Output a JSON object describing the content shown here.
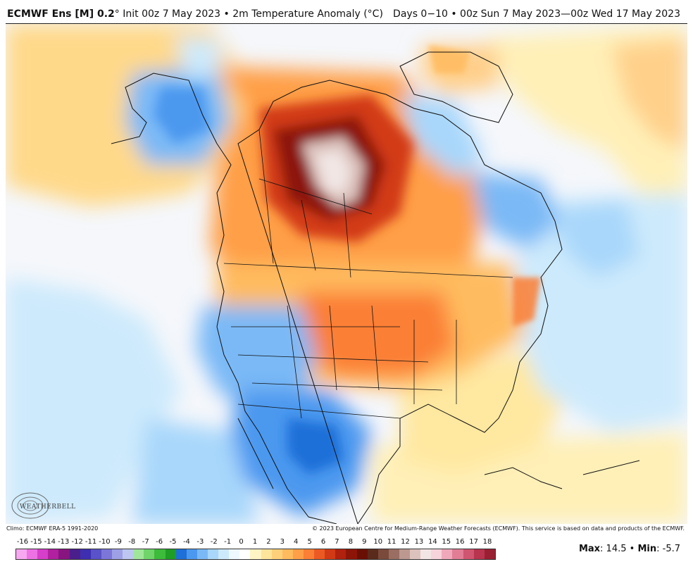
{
  "header": {
    "model": "ECMWF Ens [M] 0.2",
    "model_degree": "°",
    "init": " Init 00z 7 May 2023 • 2m Temperature Anomaly (°C)",
    "valid_range": "Days 0−10 • 00z Sun 7 May 2023—00z Wed 17 May 2023"
  },
  "footer": {
    "climo": "Climo: ECMWF ERA-5 1991-2020",
    "copyright": "© 2023 European Centre for Medium-Range Weather Forecasts (ECMWF). This service is based on data and products of the ECMWF.",
    "max_label": "Max",
    "max_value": ": 14.5",
    "separator": " • ",
    "min_label": "Min",
    "min_value": ": -5.7"
  },
  "logo": {
    "text": "WEATHERBELL"
  },
  "legend": {
    "labels": [
      "-16",
      "-15",
      "-14",
      "-13",
      "-12",
      "-11",
      "-10",
      "-9",
      "-8",
      "-7",
      "-6",
      "-5",
      "-4",
      "-3",
      "-2",
      "-1",
      "0",
      "1",
      "2",
      "3",
      "4",
      "5",
      "6",
      "7",
      "8",
      "9",
      "10",
      "11",
      "12",
      "13",
      "14",
      "15",
      "16",
      "17",
      "18"
    ],
    "colors": [
      "#f7a8f0",
      "#ee72e4",
      "#d63fc9",
      "#b0209f",
      "#881480",
      "#4a1f8c",
      "#3d2fb0",
      "#5a52c8",
      "#7c76d8",
      "#9ea0e6",
      "#bcc6f0",
      "#9fe69a",
      "#6fd46a",
      "#3dbb3a",
      "#1f9e26",
      "#1f6fd8",
      "#4b98ef",
      "#7ab9f6",
      "#a8d7fb",
      "#cdeafc",
      "#eef8ff",
      "#ffffff",
      "#fff4c4",
      "#ffe49b",
      "#ffd07a",
      "#ffbb5e",
      "#ff9f47",
      "#fb7f35",
      "#ec5a23",
      "#d23a16",
      "#b0210e",
      "#8c1508",
      "#6a0f04",
      "#5a2b1c",
      "#7a4a3c",
      "#9a6e62",
      "#bc9890",
      "#dcc2bd",
      "#f1e6e4",
      "#f7d3dc",
      "#f0a9bb",
      "#e27d96",
      "#d05571",
      "#b8344f",
      "#992033"
    ]
  }
}
